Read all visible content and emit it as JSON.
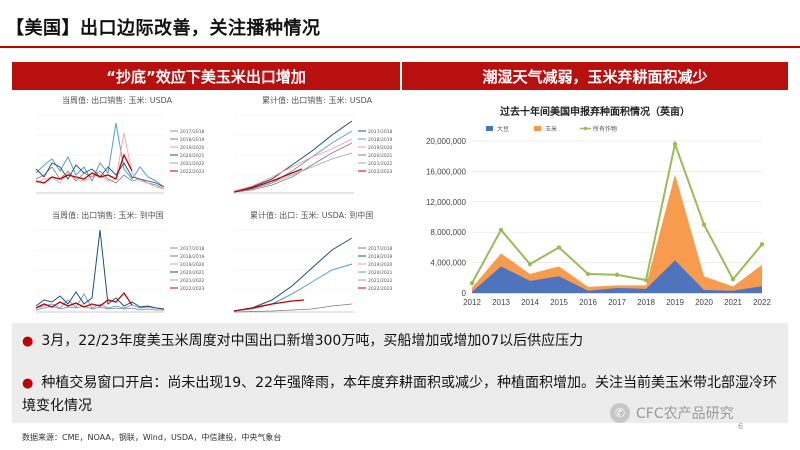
{
  "slide": {
    "title": "【美国】出口边际改善，关注播种情况",
    "page_number": "6",
    "source_label": "数据来源：CME，NOAA，钢联，Wind，USDA，中信建投，中央气象台",
    "watermark": "CFC农产品研究"
  },
  "left_band": "“抄底”效应下美玉米出口增加",
  "right_band": "潮湿天气减弱，玉米弃耕面积减少",
  "mini_charts": [
    {
      "title": "当周值: 出口销售: 玉米: USDA",
      "legend": [
        "2017/2018",
        "2018/2019",
        "2019/2020",
        "2020/2021",
        "2021/2022",
        "2022/2023"
      ]
    },
    {
      "title": "累计值: 出口销售: 玉米: USDA",
      "legend": [
        "2017/2018",
        "2018/2019",
        "2019/2020",
        "2020/2021",
        "2021/2022",
        "2022/2023"
      ]
    },
    {
      "title": "当周值: 出口销售: 玉米: 到中国",
      "legend": [
        "2017/2018",
        "2018/2019",
        "2019/2020",
        "2020/2021",
        "2021/2022",
        "2022/2023"
      ]
    },
    {
      "title": "累计值: 出口: 玉米: USDA: 到中国",
      "legend": [
        "2017/2018",
        "2018/2019",
        "2019/2020",
        "2020/2021",
        "2021/2022",
        "2022/2023"
      ]
    }
  ],
  "colors": {
    "accent_red": "#c00000",
    "band_red": "#b80f0f",
    "series_blue": "#4472c4",
    "series_orange": "#f79646",
    "series_green": "#9bbb59"
  },
  "chart_data": {
    "type": "area",
    "title": "过去十年间美国申报弃种面积情况（英亩）",
    "x": [
      "2012",
      "2013",
      "2014",
      "2015",
      "2016",
      "2017",
      "2018",
      "2019",
      "2020",
      "2021",
      "2022"
    ],
    "ylim": [
      0,
      20000000
    ],
    "yticks": [
      "0",
      "4,000,000",
      "8,000,000",
      "12,000,000",
      "16,000,000",
      "20,000,000"
    ],
    "ytick_values": [
      0,
      4000000,
      8000000,
      12000000,
      16000000,
      20000000
    ],
    "legend_position": "top-left",
    "series": [
      {
        "name": "大豆",
        "color": "#4472c4",
        "kind": "area",
        "values": [
          150000,
          3500000,
          1600000,
          2200000,
          300000,
          650000,
          550000,
          4300000,
          400000,
          300000,
          900000
        ]
      },
      {
        "name": "玉米",
        "color": "#f79646",
        "kind": "area",
        "values": [
          700000,
          5200000,
          2500000,
          3500000,
          800000,
          1000000,
          1000000,
          15600000,
          2200000,
          850000,
          3700000
        ]
      },
      {
        "name": "所有作物",
        "color": "#9bbb59",
        "kind": "line",
        "values": [
          1300000,
          8300000,
          3800000,
          6000000,
          2500000,
          2400000,
          1700000,
          19600000,
          9000000,
          1800000,
          6400000
        ]
      }
    ]
  },
  "bullets": [
    "3月，22/23年度美玉米周度对中国出口新增300万吨，买船增加或增加07以后供应压力",
    "种植交易窗口开启：尚未出现19、22年强降雨，本年度弃耕面积或减少，种植面积增加。关注当前美玉米带北部湿冷环境变化情况"
  ]
}
